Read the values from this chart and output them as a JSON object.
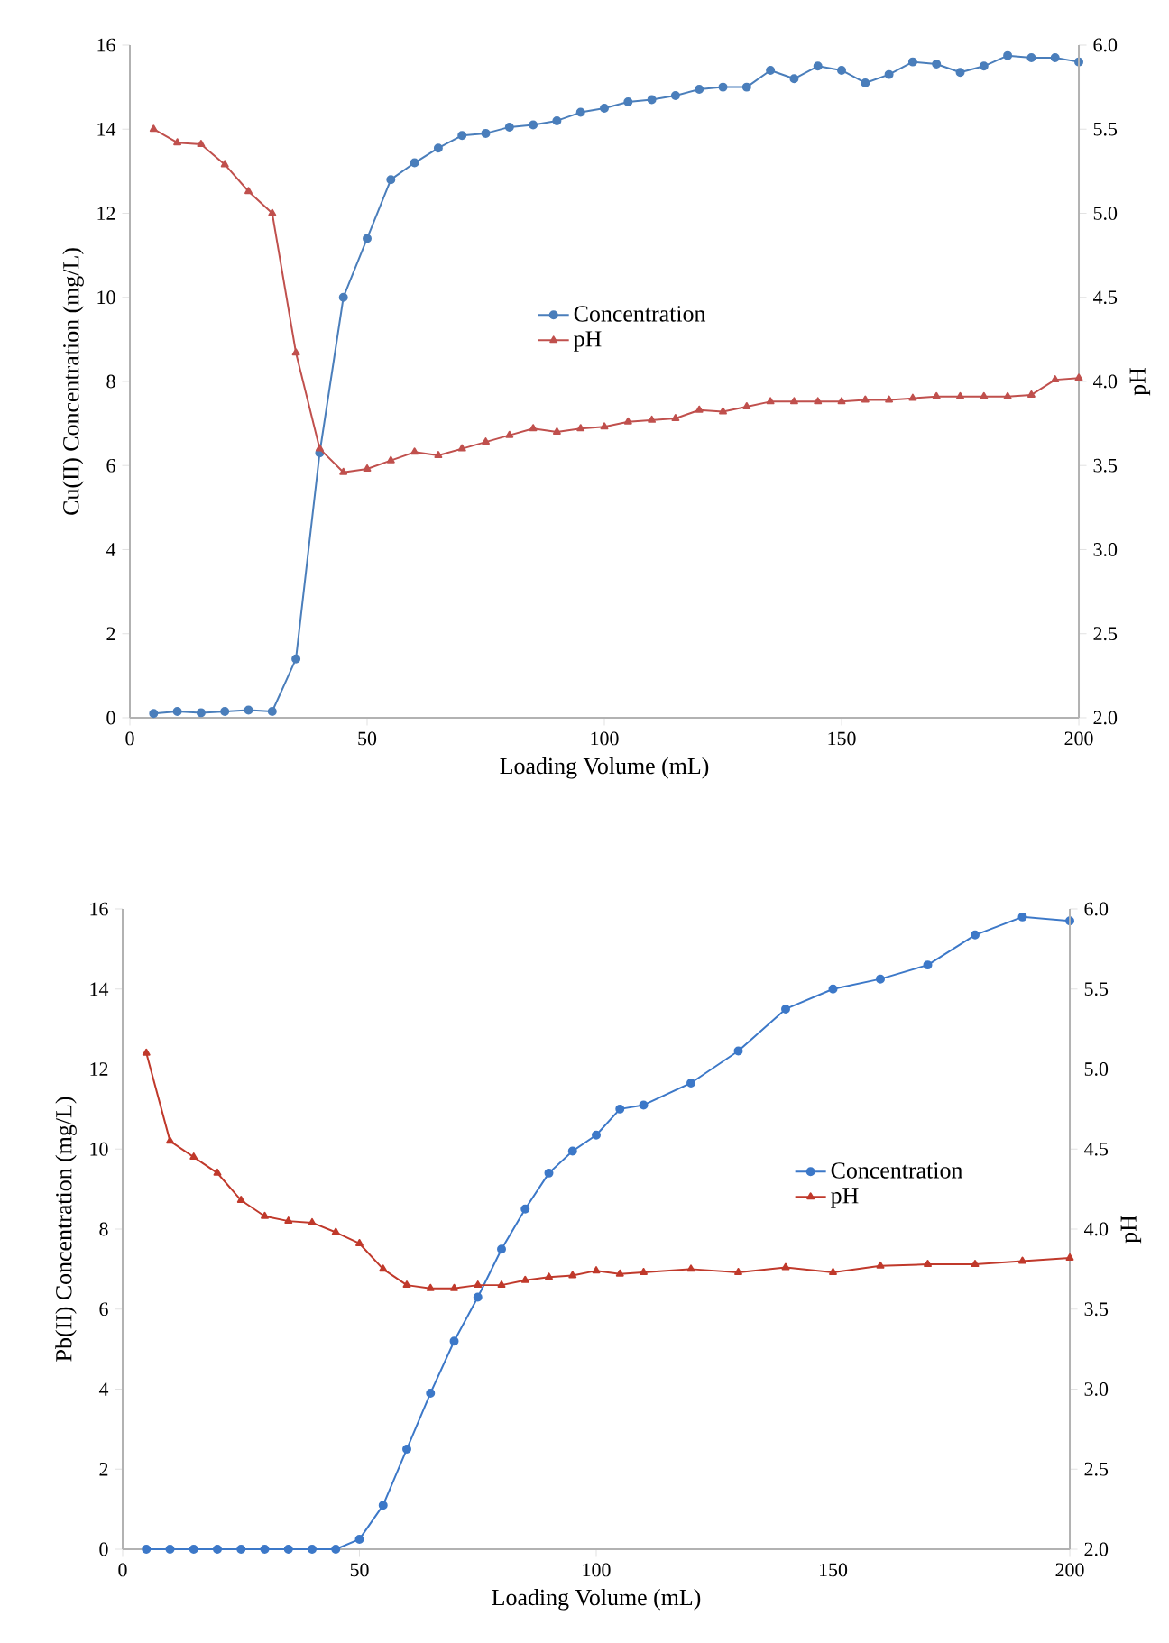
{
  "chart_data": [
    {
      "type": "line",
      "xlabel": "Loading Volume (mL)",
      "ylabel": "Cu(II) Concentration (mg/L)",
      "y2label": "pH",
      "legend": "center",
      "x": [
        5,
        10,
        15,
        20,
        25,
        30,
        35,
        40,
        45,
        50,
        55,
        60,
        65,
        70,
        75,
        80,
        85,
        90,
        95,
        100,
        105,
        110,
        115,
        120,
        125,
        130,
        135,
        140,
        145,
        150,
        155,
        160,
        165,
        170,
        175,
        180,
        185,
        190,
        195,
        200
      ],
      "xlim": [
        0,
        200
      ],
      "xticks": [
        0,
        50,
        100,
        150,
        200
      ],
      "ylim": [
        0,
        16
      ],
      "yticks": [
        0,
        2,
        4,
        6,
        8,
        10,
        12,
        14,
        16
      ],
      "y2lim": [
        2,
        6
      ],
      "y2ticks": [
        {
          "value": 2,
          "label": "2.0"
        },
        {
          "value": 2.5,
          "label": "2.5"
        },
        {
          "value": 3,
          "label": "3.0"
        },
        {
          "value": 3.5,
          "label": "3.5"
        },
        {
          "value": 4,
          "label": "4.0"
        },
        {
          "value": 4.5,
          "label": "4.5"
        },
        {
          "value": 5,
          "label": "5.0"
        },
        {
          "value": 5.5,
          "label": "5.5"
        },
        {
          "value": 6,
          "label": "6.0"
        }
      ],
      "series": [
        {
          "name": "Concentration",
          "color": "#4a7ebb",
          "marker": "circle",
          "values": [
            0.1,
            0.15,
            0.12,
            0.15,
            0.18,
            0.15,
            1.4,
            6.3,
            10.0,
            11.4,
            12.8,
            13.2,
            13.55,
            13.85,
            13.9,
            14.05,
            14.1,
            14.2,
            14.4,
            14.5,
            14.65,
            14.7,
            14.8,
            14.95,
            15.0,
            15.0,
            15.4,
            15.2,
            15.5,
            15.4,
            15.1,
            15.3,
            15.6,
            15.55,
            15.35,
            15.5,
            15.75,
            15.7,
            15.7,
            15.6
          ]
        },
        {
          "name": "pH",
          "color": "#c0504d",
          "marker": "triangle",
          "axis": "y2",
          "values": [
            5.5,
            5.42,
            5.41,
            5.29,
            5.13,
            5.0,
            4.17,
            3.6,
            3.46,
            3.48,
            3.53,
            3.58,
            3.56,
            3.6,
            3.64,
            3.68,
            3.72,
            3.7,
            3.72,
            3.73,
            3.76,
            3.77,
            3.78,
            3.83,
            3.82,
            3.85,
            3.88,
            3.88,
            3.88,
            3.88,
            3.89,
            3.89,
            3.9,
            3.91,
            3.91,
            3.91,
            3.91,
            3.92,
            4.01,
            4.02
          ]
        }
      ]
    },
    {
      "type": "line",
      "xlabel": "Loading Volume (mL)",
      "ylabel": "Pb(II) Concentration (mg/L)",
      "y2label": "pH",
      "legend": "center right",
      "x": [
        5,
        10,
        15,
        20,
        25,
        30,
        35,
        40,
        45,
        50,
        55,
        60,
        65,
        70,
        75,
        80,
        85,
        90,
        95,
        100,
        105,
        110,
        120,
        130,
        140,
        150,
        160,
        170,
        180,
        190,
        200
      ],
      "xlim": [
        0,
        200
      ],
      "xticks": [
        0,
        50,
        100,
        150,
        200
      ],
      "ylim": [
        0,
        16
      ],
      "yticks": [
        0,
        2,
        4,
        6,
        8,
        10,
        12,
        14,
        16
      ],
      "y2lim": [
        2,
        6
      ],
      "y2ticks": [
        {
          "value": 2,
          "label": "2.0"
        },
        {
          "value": 2.5,
          "label": "2.5"
        },
        {
          "value": 3,
          "label": "3.0"
        },
        {
          "value": 3.5,
          "label": "3.5"
        },
        {
          "value": 4,
          "label": "4.0"
        },
        {
          "value": 4.5,
          "label": "4.5"
        },
        {
          "value": 5,
          "label": "5.0"
        },
        {
          "value": 5.5,
          "label": "5.5"
        },
        {
          "value": 6,
          "label": "6.0"
        }
      ],
      "series": [
        {
          "name": "Concentration",
          "color": "#3c78c8",
          "marker": "circle",
          "values": [
            0,
            0,
            0,
            0,
            0,
            0,
            0,
            0,
            0,
            0.25,
            1.1,
            2.5,
            3.9,
            5.2,
            6.3,
            7.5,
            8.5,
            9.4,
            9.95,
            10.35,
            11.0,
            11.1,
            11.65,
            12.45,
            13.5,
            14.0,
            14.25,
            14.6,
            15.35,
            15.8,
            15.7
          ]
        },
        {
          "name": "pH",
          "color": "#c0392b",
          "marker": "triangle",
          "axis": "y2",
          "values": [
            5.1,
            4.55,
            4.45,
            4.35,
            4.18,
            4.08,
            4.05,
            4.04,
            3.98,
            3.91,
            3.75,
            3.65,
            3.63,
            3.63,
            3.65,
            3.65,
            3.68,
            3.7,
            3.71,
            3.74,
            3.72,
            3.73,
            3.75,
            3.73,
            3.76,
            3.73,
            3.77,
            3.78,
            3.78,
            3.8,
            3.82
          ]
        }
      ]
    }
  ]
}
